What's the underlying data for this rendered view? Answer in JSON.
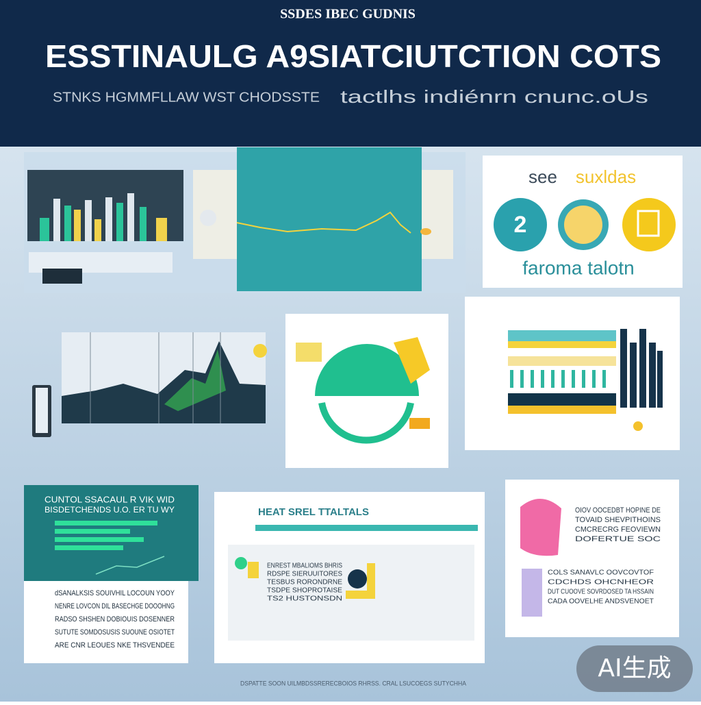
{
  "header": {
    "kicker": "SSDES IBEC GUDNIS",
    "title": "ESSTINAULG A9SIATCIUTCTION COTS",
    "subtitle_left": "STNKS HGMMFLLAW WST CHODSSTE",
    "subtitle_right": "tactlhs indiénrn cnunc.oUs"
  },
  "badge_card": {
    "title_left": "see",
    "title_right": "suxldas",
    "badge": "2",
    "caption": "faroma talotn"
  },
  "bottom_left": {
    "heading": "CUNTOL SSACAUL R VIK WID",
    "subheading": "BISDETCHENDS U.O. ER TU WY",
    "body": [
      "dSANALKSIS SOUIVHIL LOCOUN YOOY",
      "NENRE LOVCON DIL BASECHGE DOOOHNG",
      "RADSO SHSHEN DOBIOUIS DOSENNER",
      "SUTUTE SOMDOSUSIS SUOUNE OSIOTET",
      "ARE CNR LEOUES NKE THSVENDEE"
    ]
  },
  "bottom_middle": {
    "heading": "HEAT SREL TTALTALS",
    "items": [
      "ENREST MBALIOMS BHRIS",
      "RDSPE SIERUUITORES",
      "TESBUS RORONDRNE",
      "TSDPE SHOPROTAISE",
      "TS2 HUSTONSDN"
    ]
  },
  "bottom_right": {
    "body": [
      "OIOV OOCEDBT HOPINE DE",
      "TOVAID SHEVPITHOINS",
      "CMCRECRG FEOVIEWN",
      "DOFERTUE SOC"
    ],
    "list": [
      "COLS SANAVLC OOVCOVTOF",
      "CDCHDS OHCNHEOR",
      "DUT CUOOVE SOVRDOSED TA HSSAIN",
      "CADA OOVELHE ANDSVENOET"
    ]
  },
  "footer": "DSPATTE SOON UILMBDSSRERECBOIOS RHRSS. CRAL LSUCOEGS SUTYCHHA",
  "watermark": "AI生成"
}
